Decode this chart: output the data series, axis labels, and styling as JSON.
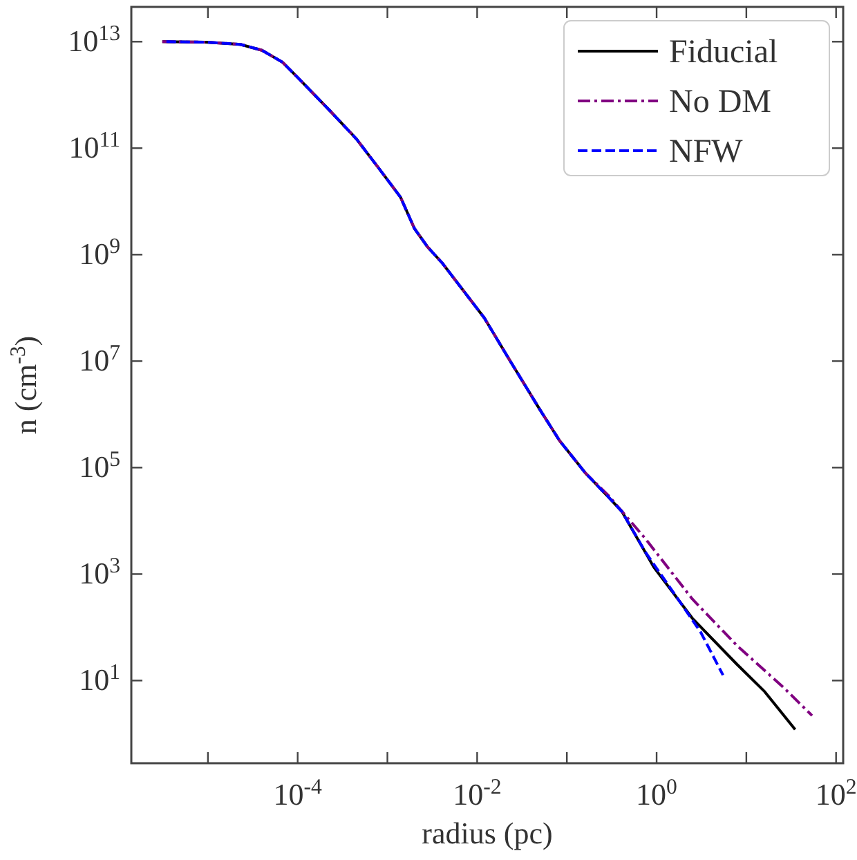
{
  "chart_data": {
    "type": "line",
    "xlabel": "radius (pc)",
    "ylabel": "n (cm$^{-3}$)",
    "log": "xy",
    "grid": false,
    "legend": "top right",
    "xlim": [
      1.4e-06,
      120
    ],
    "ylim": [
      0.28,
      45000000000000.0
    ],
    "xticks": [
      {
        "value": 1e-05,
        "label": null
      },
      {
        "value": 0.0001,
        "label": "10$^{-4}$"
      },
      {
        "value": 0.001,
        "label": null
      },
      {
        "value": 0.01,
        "label": "10$^{-2}$"
      },
      {
        "value": 0.1,
        "label": null
      },
      {
        "value": 1,
        "label": "10$^{0}$"
      },
      {
        "value": 10,
        "label": null
      },
      {
        "value": 100,
        "label": "10$^{2}$"
      }
    ],
    "yticks": [
      {
        "value": 10,
        "label": "10$^{1}$"
      },
      {
        "value": 1000,
        "label": "10$^{3}$"
      },
      {
        "value": 100000.0,
        "label": "10$^{5}$"
      },
      {
        "value": 10000000.0,
        "label": "10$^{7}$"
      },
      {
        "value": 1000000000.0,
        "label": "10$^{9}$"
      },
      {
        "value": 100000000000.0,
        "label": "10$^{11}$"
      },
      {
        "value": 10000000000000.0,
        "label": "10$^{13}$"
      }
    ],
    "series": [
      {
        "name": "Fiducial",
        "color": "#000000",
        "line_style": "solid",
        "x": [
          3.1e-06,
          9.5e-06,
          2.3e-05,
          4e-05,
          6.8e-05,
          9.8e-05,
          0.00023,
          0.00045,
          0.00081,
          0.0014,
          0.002,
          0.0028,
          0.0041,
          0.012,
          0.024,
          0.049,
          0.083,
          0.16,
          0.29,
          0.41,
          0.93,
          2.5,
          7.9,
          16,
          35
        ],
        "values": [
          10000000000000.0,
          9800000000000.0,
          8900000000000.0,
          6900000000000.0,
          4100000000000.0,
          2200000000000.0,
          500000000000.0,
          150000000000.0,
          41000000000.0,
          12000000000.0,
          3100000000.0,
          1400000000.0,
          690000000.0,
          65000000.0,
          9300000.0,
          1300000.0,
          320000.0,
          80000.0,
          28000.0,
          15000.0,
          1350,
          148,
          20,
          6.2,
          1.2
        ]
      },
      {
        "name": "No DM",
        "color": "#800080",
        "line_style": "dashdot",
        "x": [
          3.1e-06,
          9.5e-06,
          2.3e-05,
          4e-05,
          6.8e-05,
          9.8e-05,
          0.00023,
          0.00045,
          0.00081,
          0.0014,
          0.002,
          0.0028,
          0.0041,
          0.012,
          0.024,
          0.049,
          0.083,
          0.16,
          0.29,
          0.76,
          2.5,
          7.9,
          26,
          54
        ],
        "values": [
          10000000000000.0,
          9800000000000.0,
          8900000000000.0,
          6900000000000.0,
          4100000000000.0,
          2200000000000.0,
          500000000000.0,
          150000000000.0,
          41000000000.0,
          12000000000.0,
          3100000000.0,
          1400000000.0,
          690000000.0,
          65000000.0,
          9300000.0,
          1300000.0,
          320000.0,
          80000.0,
          30000.0,
          4500,
          340,
          45,
          7.4,
          2.2
        ]
      },
      {
        "name": "NFW",
        "color": "#0000ff",
        "line_style": "dashed",
        "x": [
          3.1e-06,
          9.5e-06,
          2.3e-05,
          4e-05,
          6.8e-05,
          9.8e-05,
          0.00023,
          0.00045,
          0.00081,
          0.0014,
          0.002,
          0.0028,
          0.0041,
          0.012,
          0.024,
          0.049,
          0.083,
          0.16,
          0.29,
          0.41,
          0.76,
          1.9,
          3.1,
          5.5
        ],
        "values": [
          10000000000000.0,
          9800000000000.0,
          8900000000000.0,
          6900000000000.0,
          4100000000000.0,
          2200000000000.0,
          500000000000.0,
          150000000000.0,
          41000000000.0,
          12000000000.0,
          3100000000.0,
          1400000000.0,
          690000000.0,
          65000000.0,
          9300000.0,
          1300000.0,
          320000.0,
          80000.0,
          28000.0,
          15000.0,
          2500,
          270,
          81,
          12.6
        ]
      }
    ]
  }
}
